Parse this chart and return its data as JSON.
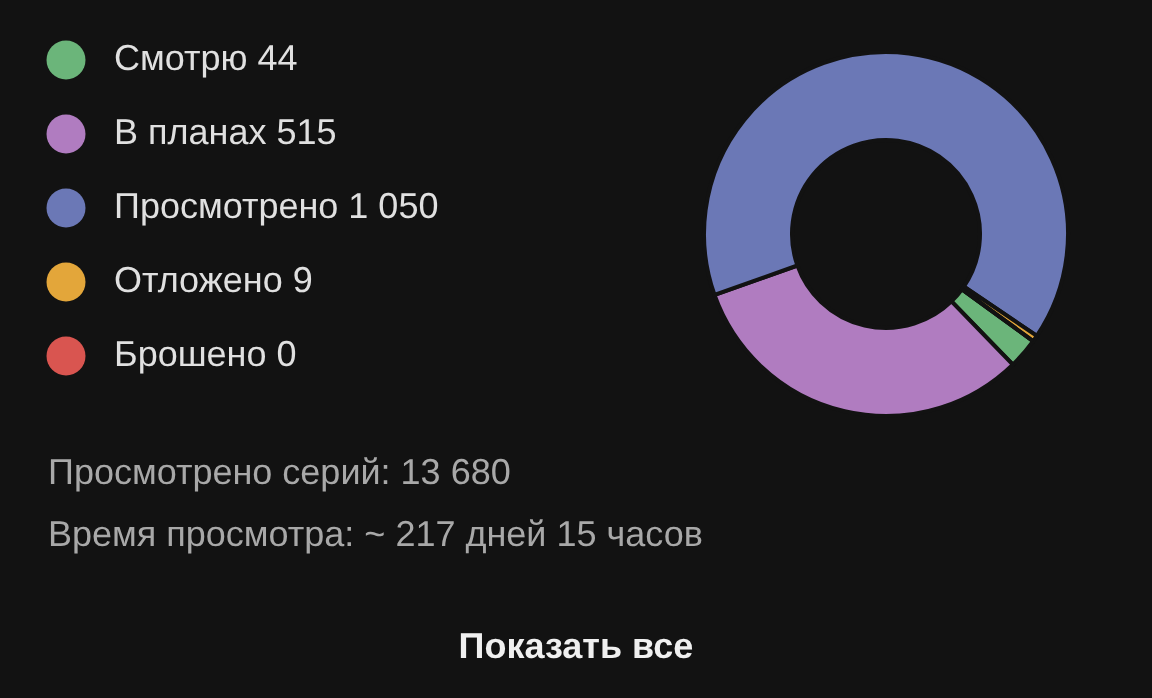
{
  "chart_data": {
    "type": "donut",
    "categories": [
      "Смотрю",
      "В планах",
      "Просмотрено",
      "Отложено",
      "Брошено"
    ],
    "values": [
      44,
      515,
      1050,
      9,
      0
    ],
    "value_labels": [
      "44",
      "515",
      "1 050",
      "9",
      "0"
    ],
    "colors": [
      "#6bb57a",
      "#b07cc0",
      "#6b78b6",
      "#e3a63a",
      "#d95550"
    ],
    "legend": "left",
    "annotations": [
      "Просмотрено серий:  13 680",
      "Время просмотра:  ~ 217 дней 15 часов",
      "Показать все"
    ]
  }
}
